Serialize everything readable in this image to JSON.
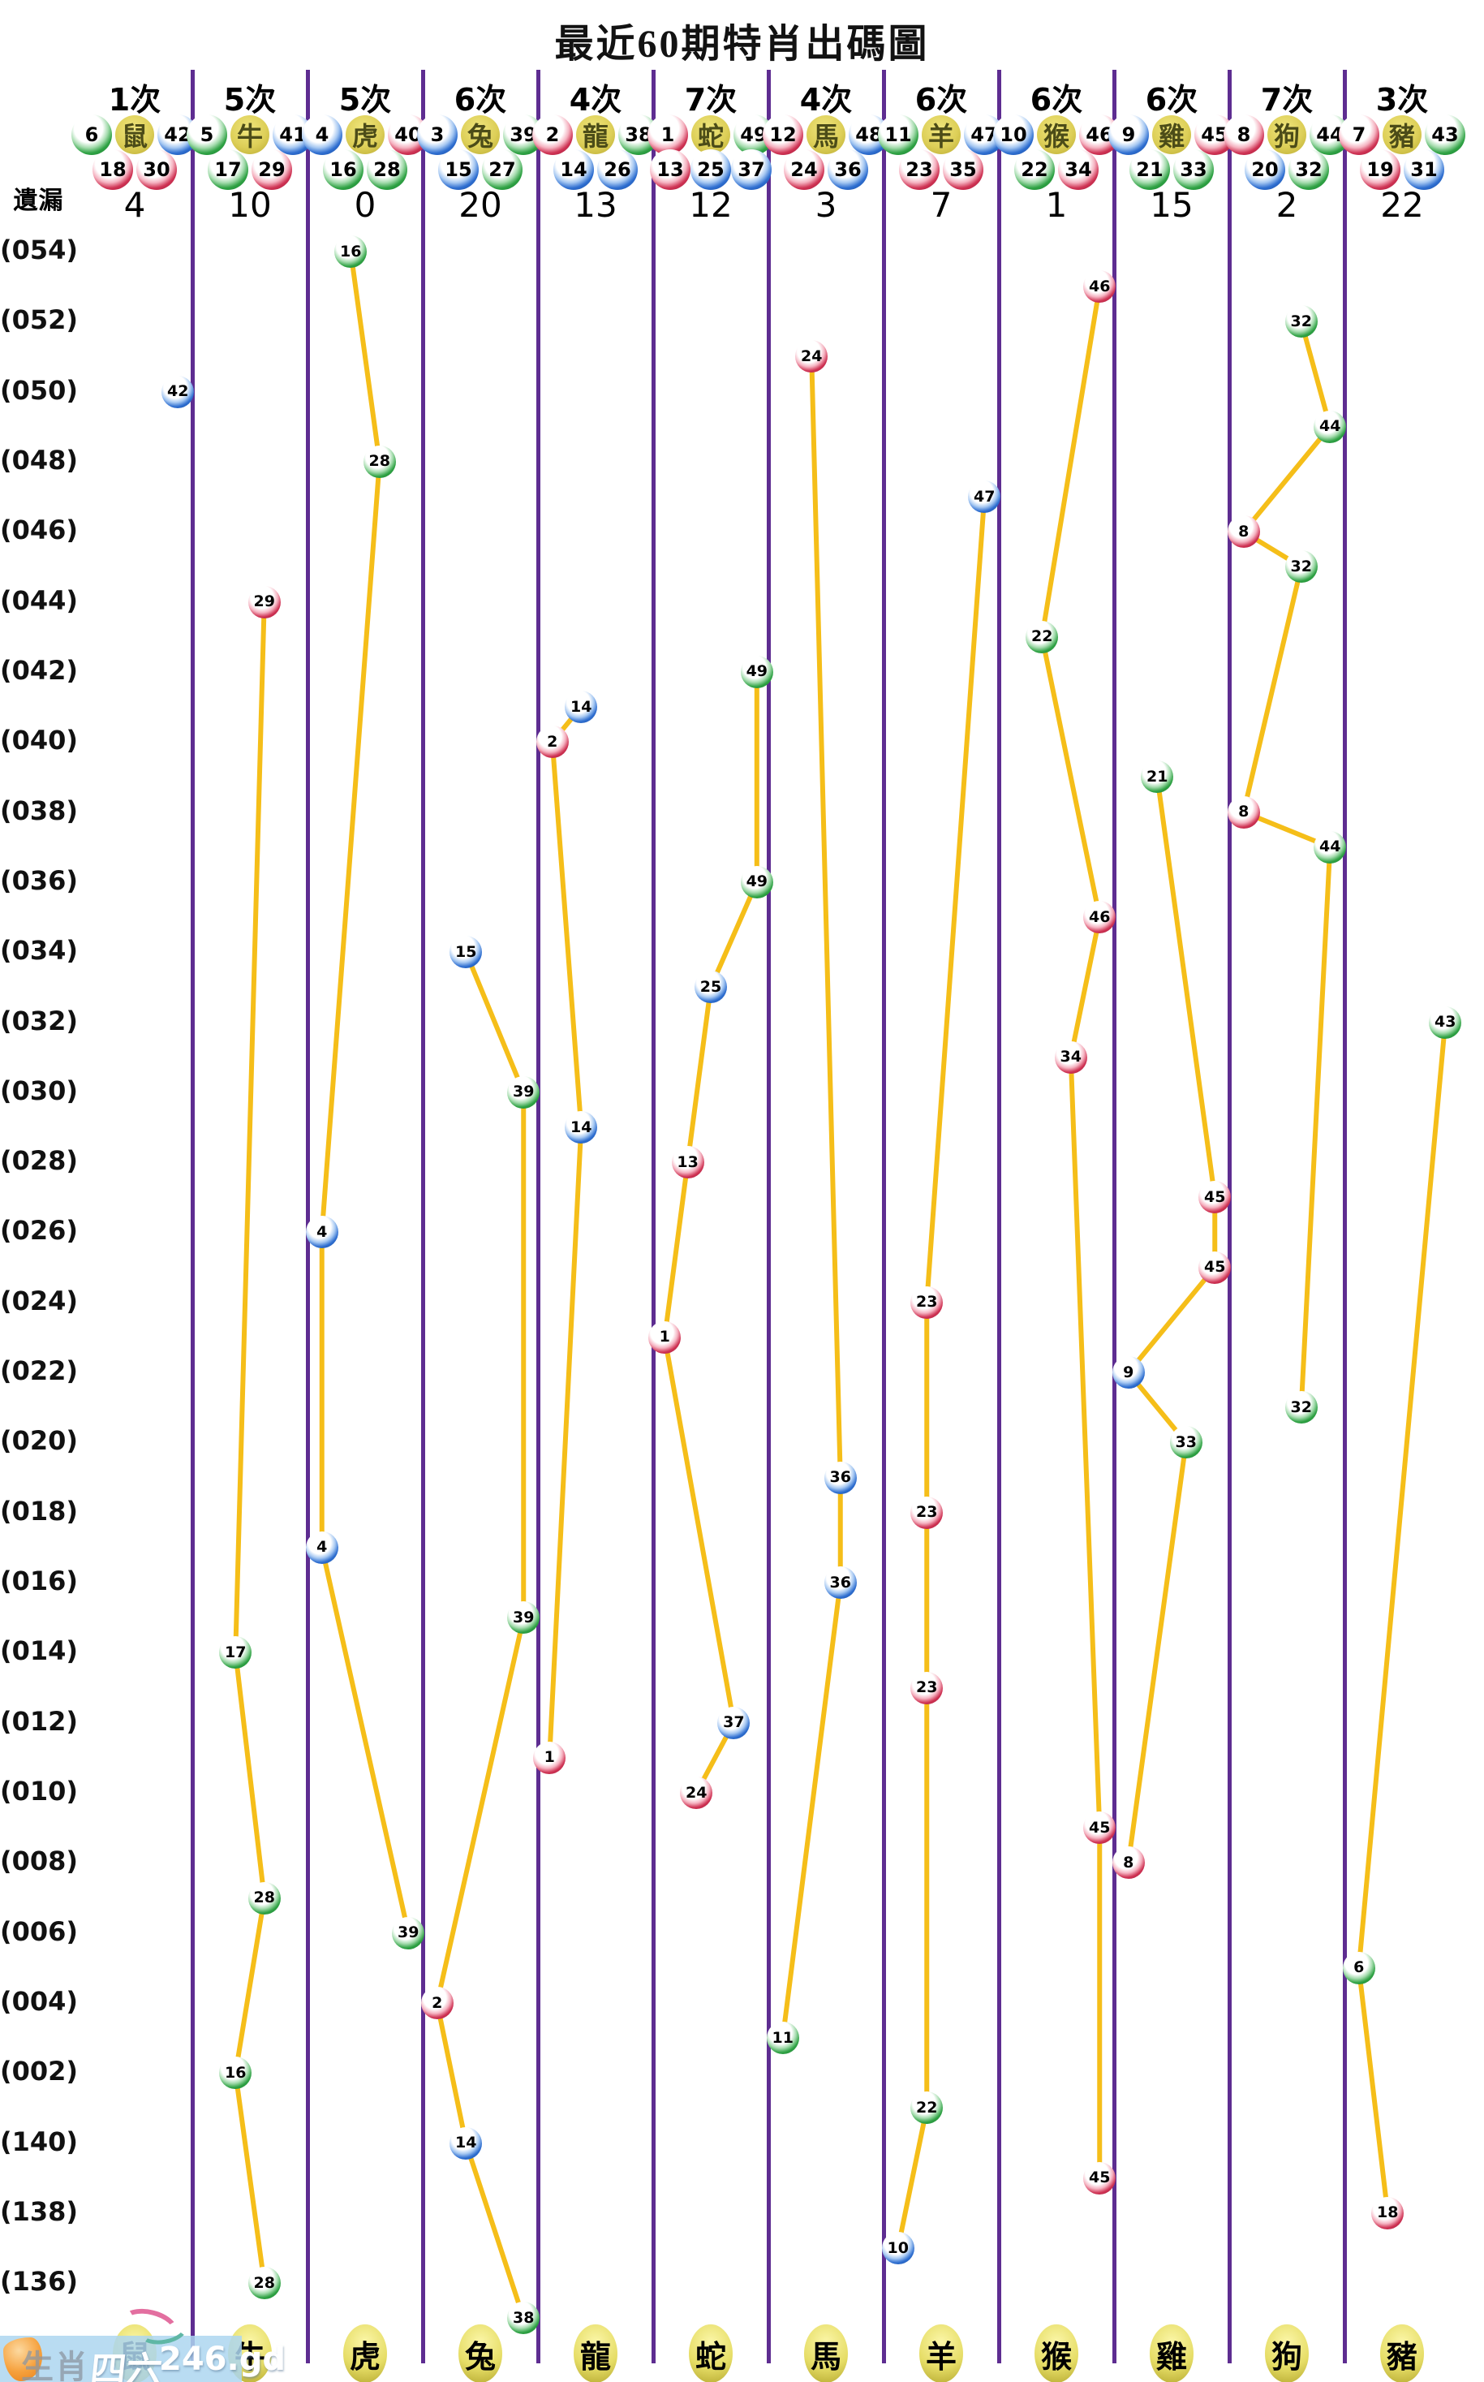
{
  "title": "最近60期特肖出碼圖",
  "labels": {
    "missing": "遺漏"
  },
  "watermark": {
    "prefix": "生肖",
    "brand": "四六",
    "suffix": "246.gd"
  },
  "palette": {
    "red_main": "#cf3354",
    "red_light": "#f5b3c1",
    "red_dark": "#8f0f2e",
    "blue_main": "#2e6ed0",
    "blue_light": "#a6c8f2",
    "blue_dark": "#123f8c",
    "green_main": "#2fa244",
    "green_light": "#a5dcae",
    "green_dark": "#127028",
    "line": "#f5be19",
    "divider": "#5e2d91",
    "zodiac_circle": "#ddcf58",
    "bottom_oval": "#e6dd66",
    "watermark_bg": "#aed6ef",
    "text": "#000000"
  },
  "chart_data": {
    "type": "scatter",
    "title": "最近60期特肖出碼圖",
    "x_axis": "生肖 (zodiac columns)",
    "y_axis": "期號 (period, newest at top)",
    "legend_position": "none",
    "grid": "vertical-dividers",
    "columns": [
      {
        "zodiac": "鼠",
        "times": "1次",
        "header_top": [
          6,
          42
        ],
        "header_bottom": [
          18,
          30
        ],
        "missing": 4
      },
      {
        "zodiac": "牛",
        "times": "5次",
        "header_top": [
          5,
          41
        ],
        "header_bottom": [
          17,
          29
        ],
        "missing": 10
      },
      {
        "zodiac": "虎",
        "times": "5次",
        "header_top": [
          4,
          40
        ],
        "header_bottom": [
          16,
          28
        ],
        "missing": 0
      },
      {
        "zodiac": "兔",
        "times": "6次",
        "header_top": [
          3,
          39
        ],
        "header_bottom": [
          15,
          27
        ],
        "missing": 20
      },
      {
        "zodiac": "龍",
        "times": "4次",
        "header_top": [
          2,
          38
        ],
        "header_bottom": [
          14,
          26
        ],
        "missing": 13
      },
      {
        "zodiac": "蛇",
        "times": "7次",
        "header_top": [
          1,
          49
        ],
        "header_bottom": [
          13,
          25,
          37
        ],
        "missing": 12
      },
      {
        "zodiac": "馬",
        "times": "4次",
        "header_top": [
          12,
          48
        ],
        "header_bottom": [
          24,
          36
        ],
        "missing": 3
      },
      {
        "zodiac": "羊",
        "times": "6次",
        "header_top": [
          11,
          47
        ],
        "header_bottom": [
          23,
          35
        ],
        "missing": 7
      },
      {
        "zodiac": "猴",
        "times": "6次",
        "header_top": [
          10,
          46
        ],
        "header_bottom": [
          22,
          34
        ],
        "missing": 1
      },
      {
        "zodiac": "雞",
        "times": "6次",
        "header_top": [
          9,
          45
        ],
        "header_bottom": [
          21,
          33
        ],
        "missing": 15
      },
      {
        "zodiac": "狗",
        "times": "7次",
        "header_top": [
          8,
          44
        ],
        "header_bottom": [
          20,
          32
        ],
        "missing": 2
      },
      {
        "zodiac": "豬",
        "times": "3次",
        "header_top": [
          7,
          43
        ],
        "header_bottom": [
          19,
          31
        ],
        "missing": 22
      }
    ],
    "y_tick_labels": [
      {
        "row": 0,
        "label": "(054)"
      },
      {
        "row": 2,
        "label": "(052)"
      },
      {
        "row": 4,
        "label": "(050)"
      },
      {
        "row": 6,
        "label": "(048)"
      },
      {
        "row": 8,
        "label": "(046)"
      },
      {
        "row": 10,
        "label": "(044)"
      },
      {
        "row": 12,
        "label": "(042)"
      },
      {
        "row": 14,
        "label": "(040)"
      },
      {
        "row": 16,
        "label": "(038)"
      },
      {
        "row": 18,
        "label": "(036)"
      },
      {
        "row": 20,
        "label": "(034)"
      },
      {
        "row": 22,
        "label": "(032)"
      },
      {
        "row": 24,
        "label": "(030)"
      },
      {
        "row": 26,
        "label": "(028)"
      },
      {
        "row": 28,
        "label": "(026)"
      },
      {
        "row": 30,
        "label": "(024)"
      },
      {
        "row": 32,
        "label": "(022)"
      },
      {
        "row": 34,
        "label": "(020)"
      },
      {
        "row": 36,
        "label": "(018)"
      },
      {
        "row": 38,
        "label": "(016)"
      },
      {
        "row": 40,
        "label": "(014)"
      },
      {
        "row": 42,
        "label": "(012)"
      },
      {
        "row": 44,
        "label": "(010)"
      },
      {
        "row": 46,
        "label": "(008)"
      },
      {
        "row": 48,
        "label": "(006)"
      },
      {
        "row": 50,
        "label": "(004)"
      },
      {
        "row": 52,
        "label": "(002)"
      },
      {
        "row": 54,
        "label": "(140)"
      },
      {
        "row": 56,
        "label": "(138)"
      },
      {
        "row": 58,
        "label": "(136)"
      }
    ],
    "points": [
      {
        "row": 0,
        "col": 2,
        "num": 16,
        "slot": 1,
        "slots": 4
      },
      {
        "row": 1,
        "col": 8,
        "num": 46,
        "slot": 3,
        "slots": 4
      },
      {
        "row": 2,
        "col": 10,
        "num": 32,
        "slot": 2,
        "slots": 4
      },
      {
        "row": 3,
        "col": 6,
        "num": 24,
        "slot": 1,
        "slots": 4
      },
      {
        "row": 4,
        "col": 0,
        "num": 42,
        "slot": 3,
        "slots": 4
      },
      {
        "row": 5,
        "col": 10,
        "num": 44,
        "slot": 3,
        "slots": 4
      },
      {
        "row": 6,
        "col": 2,
        "num": 28,
        "slot": 2,
        "slots": 4
      },
      {
        "row": 7,
        "col": 7,
        "num": 47,
        "slot": 3,
        "slots": 4
      },
      {
        "row": 8,
        "col": 10,
        "num": 8,
        "slot": 0,
        "slots": 4
      },
      {
        "row": 9,
        "col": 10,
        "num": 32,
        "slot": 2,
        "slots": 4
      },
      {
        "row": 10,
        "col": 1,
        "num": 29,
        "slot": 2,
        "slots": 4
      },
      {
        "row": 11,
        "col": 8,
        "num": 22,
        "slot": 1,
        "slots": 4
      },
      {
        "row": 12,
        "col": 5,
        "num": 49,
        "slot": 4,
        "slots": 5
      },
      {
        "row": 13,
        "col": 4,
        "num": 14,
        "slot": 1,
        "slots": 4
      },
      {
        "row": 14,
        "col": 4,
        "num": 2,
        "slot": 0,
        "slots": 4
      },
      {
        "row": 15,
        "col": 9,
        "num": 21,
        "slot": 1,
        "slots": 4
      },
      {
        "row": 16,
        "col": 10,
        "num": 8,
        "slot": 0,
        "slots": 4
      },
      {
        "row": 17,
        "col": 10,
        "num": 44,
        "slot": 3,
        "slots": 4
      },
      {
        "row": 18,
        "col": 5,
        "num": 49,
        "slot": 4,
        "slots": 5
      },
      {
        "row": 19,
        "col": 8,
        "num": 46,
        "slot": 3,
        "slots": 4
      },
      {
        "row": 20,
        "col": 3,
        "num": 15,
        "slot": 1,
        "slots": 4
      },
      {
        "row": 21,
        "col": 5,
        "num": 25,
        "slot": 2,
        "slots": 5
      },
      {
        "row": 22,
        "col": 11,
        "num": 43,
        "slot": 3,
        "slots": 4
      },
      {
        "row": 23,
        "col": 8,
        "num": 34,
        "slot": 2,
        "slots": 4
      },
      {
        "row": 24,
        "col": 3,
        "num": 39,
        "slot": 3,
        "slots": 4
      },
      {
        "row": 25,
        "col": 4,
        "num": 14,
        "slot": 1,
        "slots": 4
      },
      {
        "row": 26,
        "col": 5,
        "num": 13,
        "slot": 1,
        "slots": 5
      },
      {
        "row": 27,
        "col": 9,
        "num": 45,
        "slot": 3,
        "slots": 4
      },
      {
        "row": 28,
        "col": 2,
        "num": 4,
        "slot": 0,
        "slots": 4
      },
      {
        "row": 29,
        "col": 9,
        "num": 45,
        "slot": 3,
        "slots": 4
      },
      {
        "row": 30,
        "col": 7,
        "num": 23,
        "slot": 1,
        "slots": 4
      },
      {
        "row": 31,
        "col": 5,
        "num": 1,
        "slot": 0,
        "slots": 5
      },
      {
        "row": 32,
        "col": 9,
        "num": 9,
        "slot": 0,
        "slots": 4
      },
      {
        "row": 33,
        "col": 10,
        "num": 32,
        "slot": 2,
        "slots": 4
      },
      {
        "row": 34,
        "col": 9,
        "num": 33,
        "slot": 2,
        "slots": 4
      },
      {
        "row": 35,
        "col": 6,
        "num": 36,
        "slot": 2,
        "slots": 4
      },
      {
        "row": 36,
        "col": 7,
        "num": 23,
        "slot": 1,
        "slots": 4
      },
      {
        "row": 37,
        "col": 2,
        "num": 4,
        "slot": 0,
        "slots": 4
      },
      {
        "row": 38,
        "col": 6,
        "num": 36,
        "slot": 2,
        "slots": 4
      },
      {
        "row": 39,
        "col": 3,
        "num": 39,
        "slot": 3,
        "slots": 4
      },
      {
        "row": 40,
        "col": 1,
        "num": 17,
        "slot": 1,
        "slots": 4
      },
      {
        "row": 41,
        "col": 7,
        "num": 23,
        "slot": 1,
        "slots": 4
      },
      {
        "row": 42,
        "col": 5,
        "num": 37,
        "slot": 3,
        "slots": 5
      },
      {
        "row": 43,
        "col": 4,
        "num": 1,
        "slot": 0,
        "slots": 5
      },
      {
        "row": 44,
        "col": 5,
        "num": 24,
        "slot": 1,
        "slots": 4
      },
      {
        "row": 45,
        "col": 8,
        "num": 45,
        "slot": 3,
        "slots": 4
      },
      {
        "row": 46,
        "col": 9,
        "num": 8,
        "slot": 0,
        "slots": 4
      },
      {
        "row": 47,
        "col": 1,
        "num": 28,
        "slot": 2,
        "slots": 4
      },
      {
        "row": 48,
        "col": 2,
        "num": 39,
        "slot": 3,
        "slots": 4
      },
      {
        "row": 49,
        "col": 11,
        "num": 6,
        "slot": 0,
        "slots": 4
      },
      {
        "row": 50,
        "col": 3,
        "num": 2,
        "slot": 0,
        "slots": 4
      },
      {
        "row": 51,
        "col": 6,
        "num": 11,
        "slot": 0,
        "slots": 4
      },
      {
        "row": 52,
        "col": 1,
        "num": 16,
        "slot": 1,
        "slots": 4
      },
      {
        "row": 53,
        "col": 7,
        "num": 22,
        "slot": 1,
        "slots": 4
      },
      {
        "row": 54,
        "col": 3,
        "num": 14,
        "slot": 1,
        "slots": 4
      },
      {
        "row": 55,
        "col": 8,
        "num": 45,
        "slot": 3,
        "slots": 4
      },
      {
        "row": 56,
        "col": 11,
        "num": 18,
        "slot": 1,
        "slots": 4
      },
      {
        "row": 57,
        "col": 7,
        "num": 10,
        "slot": 0,
        "slots": 4
      },
      {
        "row": 58,
        "col": 1,
        "num": 28,
        "slot": 2,
        "slots": 4
      },
      {
        "row": 59,
        "col": 3,
        "num": 38,
        "slot": 3,
        "slots": 4
      }
    ],
    "num_colors": {
      "red": [
        1,
        2,
        7,
        8,
        12,
        13,
        18,
        19,
        23,
        24,
        29,
        30,
        34,
        35,
        40,
        45,
        46
      ],
      "blue": [
        3,
        4,
        9,
        10,
        14,
        15,
        20,
        25,
        26,
        31,
        36,
        37,
        41,
        42,
        47,
        48
      ],
      "green": [
        5,
        6,
        11,
        16,
        17,
        21,
        22,
        27,
        28,
        32,
        33,
        38,
        39,
        43,
        44,
        49
      ]
    }
  }
}
